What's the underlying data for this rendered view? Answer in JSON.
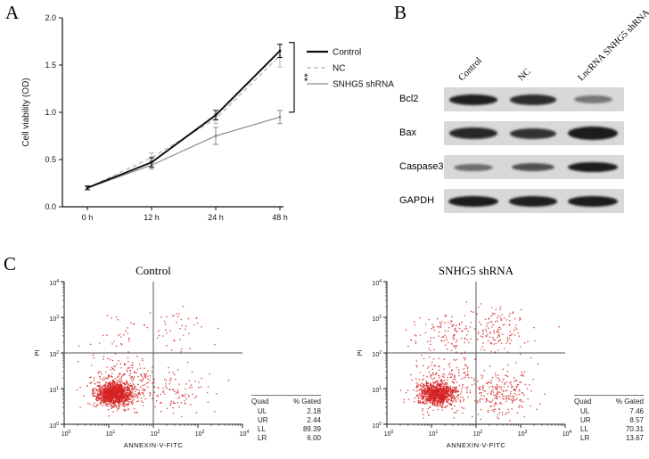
{
  "panels": {
    "A": {
      "label": "A"
    },
    "B": {
      "label": "B",
      "columns": [
        "Control",
        "NC",
        "LncRNA SNHG5 shRNA"
      ],
      "rows": [
        {
          "label": "Bcl2",
          "intensities": [
            0.95,
            0.88,
            0.5
          ],
          "heights": [
            12,
            12,
            9
          ]
        },
        {
          "label": "Bax",
          "intensities": [
            0.9,
            0.85,
            0.97
          ],
          "heights": [
            13,
            12,
            15
          ]
        },
        {
          "label": "Caspase3",
          "intensities": [
            0.55,
            0.7,
            0.97
          ],
          "heights": [
            8,
            9,
            11
          ]
        },
        {
          "label": "GAPDH",
          "intensities": [
            0.97,
            0.95,
            0.97
          ],
          "heights": [
            12,
            12,
            12
          ]
        }
      ],
      "strip_color": "#d8d8d8",
      "band_color": "#161616"
    },
    "C": {
      "label": "C"
    }
  },
  "chart_data": [
    {
      "id": "cell-viability",
      "type": "line",
      "title": "",
      "xlabel": "",
      "ylabel": "Cell viability (OD)",
      "categories": [
        "0 h",
        "12 h",
        "24 h",
        "48 h"
      ],
      "ylim": [
        0,
        2.0
      ],
      "yticks": [
        0,
        0.5,
        1.0,
        1.5,
        2.0
      ],
      "series": [
        {
          "name": "Control",
          "values": [
            0.2,
            0.47,
            0.97,
            1.65
          ],
          "errors": [
            0.02,
            0.05,
            0.05,
            0.07
          ],
          "color": "#111111",
          "dash": "solid"
        },
        {
          "name": "NC",
          "values": [
            0.2,
            0.52,
            0.93,
            1.6
          ],
          "errors": [
            0.02,
            0.05,
            0.05,
            0.12
          ],
          "color": "#b3b3b3",
          "dash": "dashed"
        },
        {
          "name": "SNHG5 shRNA",
          "values": [
            0.2,
            0.44,
            0.75,
            0.95
          ],
          "errors": [
            0.02,
            0.04,
            0.09,
            0.07
          ],
          "color": "#8c8c8c",
          "dash": "solid"
        }
      ],
      "legend_position": "right",
      "annotation": "**"
    },
    {
      "id": "flow-control",
      "type": "scatter",
      "title": "Control",
      "xlabel": "ANNEXIN-V-FITC",
      "ylabel": "PI",
      "xlim_log": [
        0,
        4
      ],
      "ylim_log": [
        0,
        4
      ],
      "point_color": "#d42020",
      "n_points": 1600,
      "quadrants": {
        "UL": 2.18,
        "UR": 2.44,
        "LL": 89.39,
        "LR": 6.0
      },
      "table": {
        "header": [
          "Quad",
          "% Gated"
        ],
        "rows": [
          [
            "UL",
            "2.18"
          ],
          [
            "UR",
            "2.44"
          ],
          [
            "LL",
            "89.39"
          ],
          [
            "LR",
            "6.00"
          ]
        ]
      }
    },
    {
      "id": "flow-snhg5-shrna",
      "type": "scatter",
      "title": "SNHG5 shRNA",
      "xlabel": "ANNEXIN-V-FITC",
      "ylabel": "PI",
      "xlim_log": [
        0,
        4
      ],
      "ylim_log": [
        0,
        4
      ],
      "point_color": "#d42020",
      "n_points": 1600,
      "quadrants": {
        "UL": 7.46,
        "UR": 8.57,
        "LL": 70.31,
        "LR": 13.67
      },
      "table": {
        "header": [
          "Quad",
          "% Gated"
        ],
        "rows": [
          [
            "UL",
            "7.46"
          ],
          [
            "UR",
            "8.57"
          ],
          [
            "LL",
            "70.31"
          ],
          [
            "LR",
            "13.67"
          ]
        ]
      }
    }
  ]
}
